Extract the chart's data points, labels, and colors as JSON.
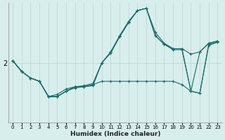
{
  "xlabel": "Humidex (Indice chaleur)",
  "bg_color": "#d8eeec",
  "line_color": "#1a6b6b",
  "grid_color": "#b8d4d0",
  "x_min": 0,
  "x_max": 23,
  "y_min": 1.45,
  "y_max": 2.55,
  "y_ticks": [
    2
  ],
  "series": [
    {
      "y": [
        2.02,
        1.92,
        1.86,
        1.83,
        1.69,
        1.69,
        1.74,
        1.77,
        1.78,
        1.79,
        2.0,
        2.1,
        2.25,
        2.38,
        2.48,
        2.5,
        2.28,
        2.18,
        2.13,
        2.13,
        2.08,
        2.1,
        2.18,
        2.2
      ]
    },
    {
      "y": [
        2.02,
        1.92,
        1.86,
        1.83,
        1.69,
        1.69,
        1.74,
        1.78,
        1.78,
        1.8,
        1.83,
        1.83,
        1.83,
        1.83,
        1.83,
        1.83,
        1.83,
        1.83,
        1.83,
        1.8,
        1.74,
        2.1,
        2.18,
        2.2
      ]
    },
    {
      "y": [
        2.02,
        1.92,
        1.86,
        1.83,
        1.69,
        1.69,
        1.74,
        1.78,
        1.78,
        1.8,
        2.0,
        2.1,
        2.24,
        2.37,
        2.48,
        2.5,
        2.25,
        2.17,
        2.13,
        2.13,
        1.74,
        1.72,
        2.17,
        2.19
      ]
    },
    {
      "y": [
        2.02,
        1.92,
        1.86,
        1.83,
        1.69,
        1.71,
        1.76,
        1.78,
        1.79,
        1.81,
        2.0,
        2.09,
        2.24,
        2.37,
        2.48,
        2.5,
        2.25,
        2.17,
        2.12,
        2.12,
        1.74,
        1.72,
        2.16,
        2.19
      ]
    }
  ]
}
